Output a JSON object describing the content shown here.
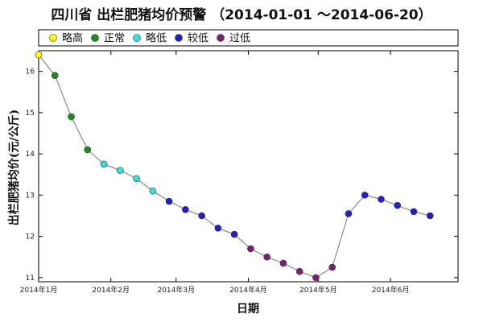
{
  "chart_data": {
    "type": "line",
    "title": "四川省 出栏肥猪均价预警 （2014-01-01 ～2014-06-20）",
    "xlabel": "日期",
    "ylabel": "出栏肥猪均价(元/公斤)",
    "ylim": [
      10.9,
      16.5
    ],
    "xlim": [
      "2014-01-01",
      "2014-06-30"
    ],
    "y_ticks": [
      "11",
      "12",
      "13",
      "14",
      "15",
      "16"
    ],
    "x_ticks": [
      {
        "date": "2014-01-01",
        "label": "2014年1月"
      },
      {
        "date": "2014-02-01",
        "label": "2014年2月"
      },
      {
        "date": "2014-03-01",
        "label": "2014年3月"
      },
      {
        "date": "2014-04-01",
        "label": "2014年4月"
      },
      {
        "date": "2014-05-01",
        "label": "2014年5月"
      },
      {
        "date": "2014-06-01",
        "label": "2014年6月"
      }
    ],
    "legend": [
      {
        "label": "略高",
        "color": "#ffff00"
      },
      {
        "label": "正常",
        "color": "#1e8c1e"
      },
      {
        "label": "略低",
        "color": "#33e0e0"
      },
      {
        "label": "较低",
        "color": "#2020c8"
      },
      {
        "label": "过低",
        "color": "#7a1e78"
      }
    ],
    "grid": false,
    "line_color": "#777777",
    "points": [
      {
        "date": "2014-01-01",
        "value": 16.4,
        "level": "略高"
      },
      {
        "date": "2014-01-08",
        "value": 15.9,
        "level": "正常"
      },
      {
        "date": "2014-01-15",
        "value": 14.9,
        "level": "正常"
      },
      {
        "date": "2014-01-22",
        "value": 14.1,
        "level": "正常"
      },
      {
        "date": "2014-01-29",
        "value": 13.75,
        "level": "略低"
      },
      {
        "date": "2014-02-05",
        "value": 13.6,
        "level": "略低"
      },
      {
        "date": "2014-02-12",
        "value": 13.4,
        "level": "略低"
      },
      {
        "date": "2014-02-19",
        "value": 13.1,
        "level": "略低"
      },
      {
        "date": "2014-02-26",
        "value": 12.85,
        "level": "较低"
      },
      {
        "date": "2014-03-05",
        "value": 12.65,
        "level": "较低"
      },
      {
        "date": "2014-03-12",
        "value": 12.5,
        "level": "较低"
      },
      {
        "date": "2014-03-19",
        "value": 12.2,
        "level": "较低"
      },
      {
        "date": "2014-03-26",
        "value": 12.05,
        "level": "较低"
      },
      {
        "date": "2014-04-02",
        "value": 11.7,
        "level": "过低"
      },
      {
        "date": "2014-04-09",
        "value": 11.5,
        "level": "过低"
      },
      {
        "date": "2014-04-16",
        "value": 11.35,
        "level": "过低"
      },
      {
        "date": "2014-04-23",
        "value": 11.15,
        "level": "过低"
      },
      {
        "date": "2014-04-30",
        "value": 11.0,
        "level": "过低"
      },
      {
        "date": "2014-05-07",
        "value": 11.25,
        "level": "过低"
      },
      {
        "date": "2014-05-14",
        "value": 12.55,
        "level": "较低"
      },
      {
        "date": "2014-05-21",
        "value": 13.0,
        "level": "较低"
      },
      {
        "date": "2014-05-28",
        "value": 12.9,
        "level": "较低"
      },
      {
        "date": "2014-06-04",
        "value": 12.75,
        "level": "较低"
      },
      {
        "date": "2014-06-11",
        "value": 12.6,
        "level": "较低"
      },
      {
        "date": "2014-06-18",
        "value": 12.5,
        "level": "较低"
      }
    ]
  }
}
